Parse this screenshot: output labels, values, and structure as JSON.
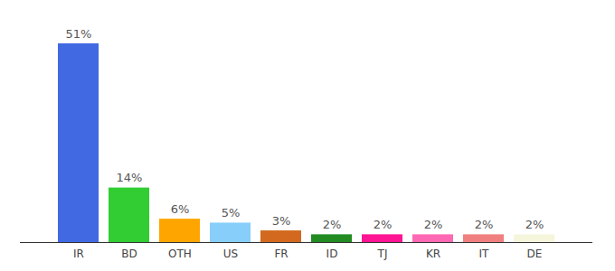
{
  "chart_data": {
    "type": "bar",
    "categories": [
      "IR",
      "BD",
      "OTH",
      "US",
      "FR",
      "ID",
      "TJ",
      "KR",
      "IT",
      "DE"
    ],
    "values": [
      51,
      14,
      6,
      5,
      3,
      2,
      2,
      2,
      2,
      2
    ],
    "value_labels": [
      "51%",
      "14%",
      "6%",
      "5%",
      "3%",
      "2%",
      "2%",
      "2%",
      "2%",
      "2%"
    ],
    "colors": [
      "#4169e1",
      "#32cd32",
      "#ffa500",
      "#87cefa",
      "#d2691e",
      "#228b22",
      "#ff1493",
      "#ff69b4",
      "#f08080",
      "#f5f5dc"
    ],
    "ylim": [
      0,
      51
    ],
    "data_labels": true,
    "tick_labels": "x",
    "grid": false
  }
}
